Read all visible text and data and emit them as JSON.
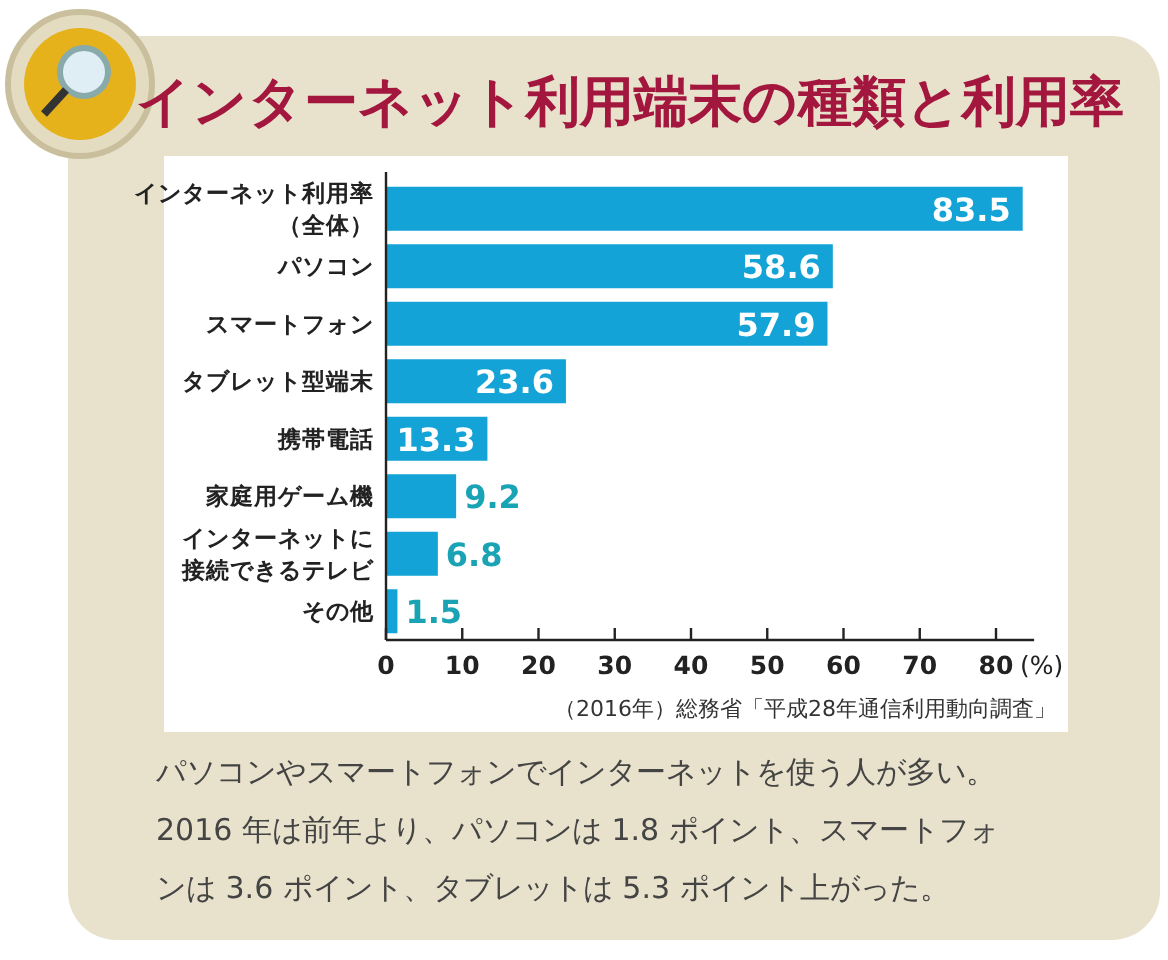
{
  "chart_data": {
    "type": "bar",
    "orientation": "horizontal",
    "title": "インターネット利用端末の種類と利用率",
    "categories": [
      "インターネット利用率（全体）",
      "パソコン",
      "スマートフォン",
      "タブレット型端末",
      "携帯電話",
      "家庭用ゲーム機",
      "インターネットに接続できるテレビ",
      "その他"
    ],
    "values": [
      83.5,
      58.6,
      57.9,
      23.6,
      13.3,
      9.2,
      6.8,
      1.5
    ],
    "color": "#14a3d6",
    "xlim": [
      0,
      85
    ],
    "xticks": [
      0,
      10,
      20,
      30,
      40,
      50,
      60,
      70,
      80
    ],
    "xlabel": "(%)",
    "data_labels": true,
    "annotations": [
      "（2016年）総務省「平成28年通信利用動向調査」",
      "パソコンやスマートフォンでインターネットを使う人が多い。2016 年は前年より、パソコンは 1.8 ポイント、スマートフォンは 3.6 ポイント、タブレットは 5.3 ポイント上がった。"
    ]
  }
}
